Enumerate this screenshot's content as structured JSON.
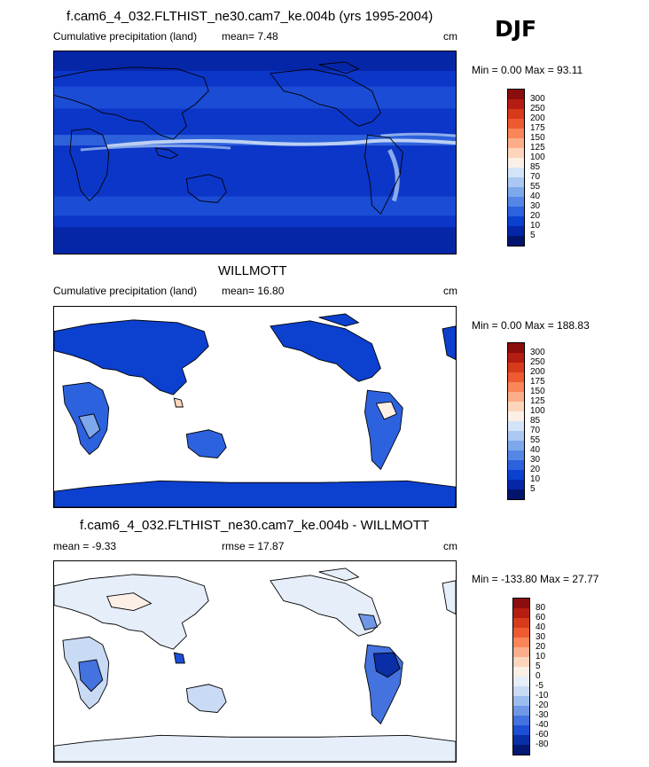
{
  "season": "DJF",
  "panels": [
    {
      "title": "f.cam6_4_032.FLTHIST_ne30.cam7_ke.004b (yrs 1995-2004)",
      "left_label": "Cumulative precipitation (land)",
      "stat_label": "mean=  7.48",
      "units": "cm",
      "minmax": "Min =   0.00 Max =  93.11",
      "levels": [
        "300",
        "250",
        "200",
        "175",
        "150",
        "125",
        "100",
        "85",
        "70",
        "55",
        "40",
        "30",
        "20",
        "10",
        "5"
      ],
      "colors": [
        "#8c0d0d",
        "#b51d12",
        "#d83a1c",
        "#ee5b30",
        "#f98559",
        "#fcae8a",
        "#fdd5bd",
        "#fbefe6",
        "#d4e4f7",
        "#aac8f2",
        "#7ea8ec",
        "#5586e6",
        "#2d62de",
        "#0c40cf",
        "#0626a8",
        "#02146e"
      ],
      "ocean_color": "#0c36c8",
      "land_style": "model"
    },
    {
      "title": "WILLMOTT",
      "left_label": "Cumulative precipitation (land)",
      "stat_label": "mean=  16.80",
      "units": "cm",
      "minmax": "Min =   0.00 Max = 188.83",
      "levels": [
        "300",
        "250",
        "200",
        "175",
        "150",
        "125",
        "100",
        "85",
        "70",
        "55",
        "40",
        "30",
        "20",
        "10",
        "5"
      ],
      "colors": [
        "#8c0d0d",
        "#b51d12",
        "#d83a1c",
        "#ee5b30",
        "#f98559",
        "#fcae8a",
        "#fdd5bd",
        "#fbefe6",
        "#d4e4f7",
        "#aac8f2",
        "#7ea8ec",
        "#5586e6",
        "#2d62de",
        "#0c40cf",
        "#0626a8",
        "#02146e"
      ],
      "ocean_color": "#ffffff",
      "land_style": "obs"
    },
    {
      "title": "f.cam6_4_032.FLTHIST_ne30.cam7_ke.004b - WILLMOTT",
      "left_label": "mean =  -9.33",
      "stat_label": "rmse =  17.87",
      "units": "cm",
      "minmax": "Min = -133.80 Max =  27.77",
      "levels": [
        "80",
        "60",
        "40",
        "30",
        "20",
        "10",
        "5",
        "0",
        "-5",
        "-10",
        "-20",
        "-30",
        "-40",
        "-60",
        "-80"
      ],
      "colors": [
        "#8c0d0d",
        "#b51d12",
        "#d83a1c",
        "#ee5b30",
        "#f98559",
        "#fcae8a",
        "#fdd5bd",
        "#fbefe6",
        "#e6eefa",
        "#c9dbf4",
        "#9dbcee",
        "#6f97e6",
        "#4472de",
        "#1d4ed4",
        "#0a2ea6",
        "#031773"
      ],
      "ocean_color": "#ffffff",
      "land_style": "diff"
    }
  ]
}
